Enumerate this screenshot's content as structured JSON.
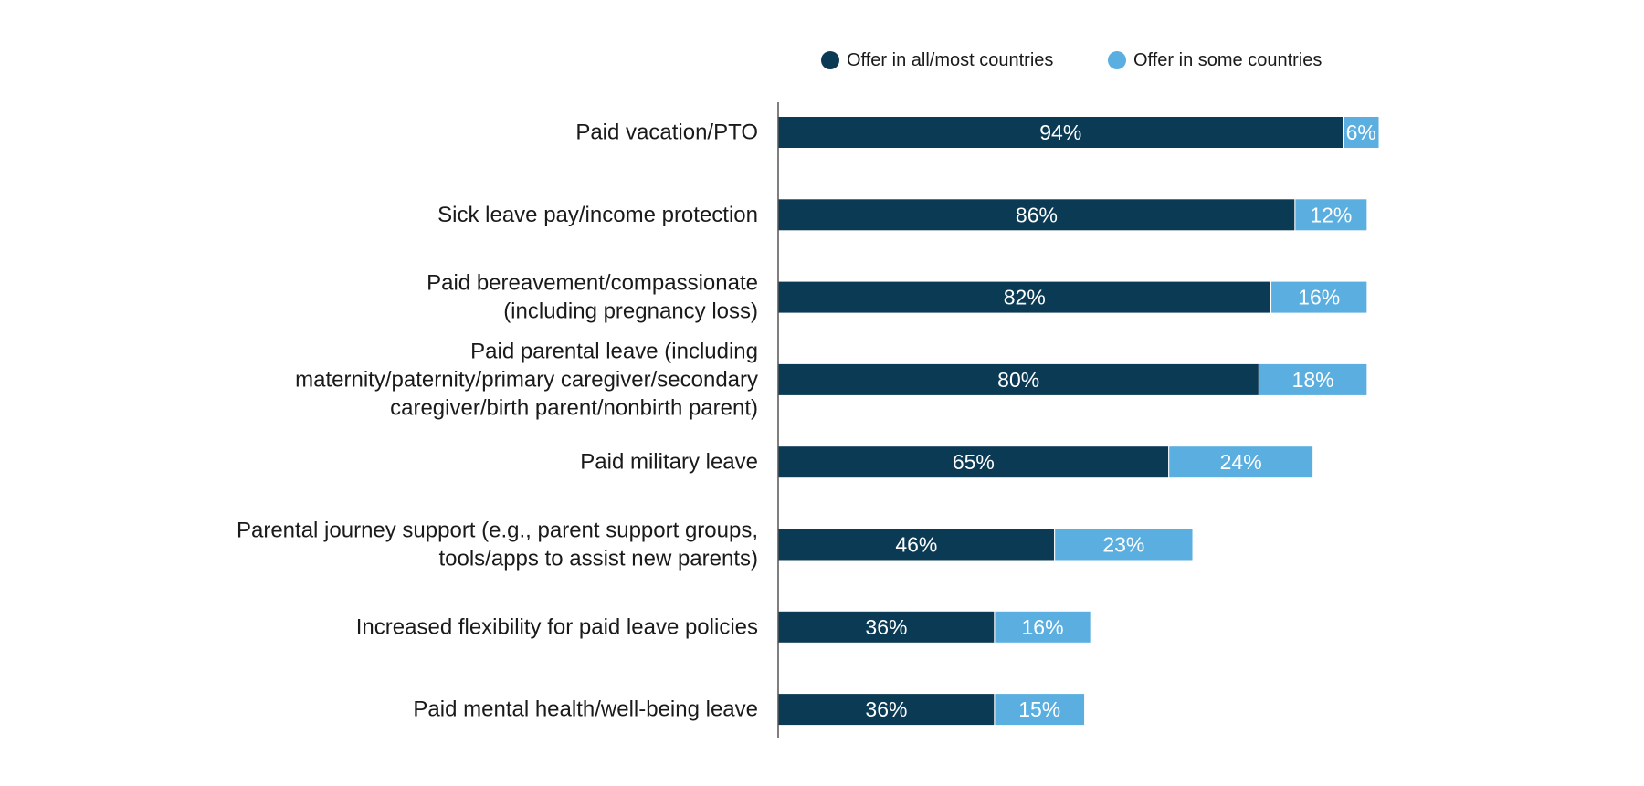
{
  "chart_data": {
    "type": "bar",
    "orientation": "horizontal",
    "stacked": true,
    "title": "",
    "xlabel": "",
    "ylabel": "",
    "xlim": [
      0,
      100
    ],
    "grid": false,
    "legend_position": "top",
    "categories": [
      [
        "Paid vacation/PTO"
      ],
      [
        "Sick leave pay/income protection"
      ],
      [
        "Paid bereavement/compassionate",
        "(including pregnancy loss)"
      ],
      [
        "Paid parental leave (including",
        "maternity/paternity/primary caregiver/secondary",
        "caregiver/birth parent/nonbirth parent)"
      ],
      [
        "Paid military leave"
      ],
      [
        "Parental journey support (e.g., parent support groups,",
        "tools/apps to assist new parents)"
      ],
      [
        "Increased flexibility for paid leave policies"
      ],
      [
        "Paid mental health/well-being leave"
      ]
    ],
    "series": [
      {
        "name": "Offer in all/most countries",
        "color": "#0b3a55",
        "values": [
          94,
          86,
          82,
          80,
          65,
          46,
          36,
          36
        ],
        "labels": [
          "94%",
          "86%",
          "82%",
          "80%",
          "65%",
          "46%",
          "36%",
          "36%"
        ]
      },
      {
        "name": "Offer in some countries",
        "color": "#5aaee0",
        "values": [
          6,
          12,
          16,
          18,
          24,
          23,
          16,
          15
        ],
        "labels": [
          "6%",
          "12%",
          "16%",
          "18%",
          "24%",
          "23%",
          "16%",
          "15%"
        ]
      }
    ]
  }
}
